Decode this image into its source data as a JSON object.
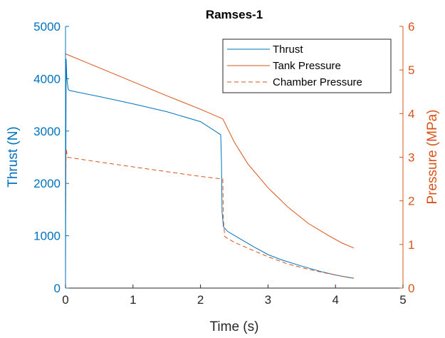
{
  "chart_data": {
    "type": "line",
    "title": "Ramses-1",
    "xlabel": "Time (s)",
    "ylabel_left": "Thrust (N)",
    "ylabel_right": "Pressure (MPa)",
    "xlim": [
      0,
      5
    ],
    "ylim_left": [
      0,
      5000
    ],
    "ylim_right": [
      0,
      6
    ],
    "xticks": [
      "0",
      "1",
      "2",
      "3",
      "4",
      "5"
    ],
    "yticks_left": [
      "0",
      "1000",
      "2000",
      "3000",
      "4000",
      "5000"
    ],
    "yticks_right": [
      "0",
      "1",
      "2",
      "3",
      "4",
      "5",
      "6"
    ],
    "grid": false,
    "legend_position": "top-right",
    "colors": {
      "left_axis": "#0072BD",
      "right_axis": "#D95319",
      "axes_dark": "#262626"
    },
    "series": [
      {
        "name": "Thrust",
        "axis": "left",
        "style": "solid",
        "color": "#0072BD",
        "points": [
          [
            0.0,
            150
          ],
          [
            0.01,
            4380
          ],
          [
            0.02,
            4000
          ],
          [
            0.04,
            3800
          ],
          [
            0.06,
            3775
          ],
          [
            0.5,
            3660
          ],
          [
            1.0,
            3520
          ],
          [
            1.5,
            3370
          ],
          [
            2.0,
            3180
          ],
          [
            2.3,
            2930
          ],
          [
            2.31,
            2440
          ],
          [
            2.32,
            1460
          ],
          [
            2.34,
            1170
          ],
          [
            2.4,
            1085
          ],
          [
            2.6,
            930
          ],
          [
            2.8,
            780
          ],
          [
            3.0,
            640
          ],
          [
            3.2,
            540
          ],
          [
            3.5,
            420
          ],
          [
            3.8,
            310
          ],
          [
            4.0,
            250
          ],
          [
            4.2,
            200
          ],
          [
            4.27,
            190
          ]
        ]
      },
      {
        "name": "Tank Pressure",
        "axis": "right",
        "style": "solid",
        "color": "#D95319",
        "points": [
          [
            0.0,
            5.37
          ],
          [
            0.5,
            5.05
          ],
          [
            1.0,
            4.73
          ],
          [
            1.5,
            4.41
          ],
          [
            2.0,
            4.1
          ],
          [
            2.33,
            3.88
          ],
          [
            2.5,
            3.35
          ],
          [
            2.7,
            2.85
          ],
          [
            3.0,
            2.3
          ],
          [
            3.3,
            1.85
          ],
          [
            3.6,
            1.48
          ],
          [
            3.9,
            1.2
          ],
          [
            4.1,
            1.03
          ],
          [
            4.27,
            0.92
          ]
        ]
      },
      {
        "name": "Chamber Pressure",
        "axis": "right",
        "style": "dashed",
        "color": "#D95319",
        "points": [
          [
            0.0,
            1.6
          ],
          [
            0.01,
            3.2
          ],
          [
            0.03,
            3.0
          ],
          [
            0.5,
            2.89
          ],
          [
            1.0,
            2.78
          ],
          [
            1.5,
            2.67
          ],
          [
            2.0,
            2.56
          ],
          [
            2.33,
            2.5
          ],
          [
            2.34,
            1.55
          ],
          [
            2.36,
            1.18
          ],
          [
            2.5,
            1.05
          ],
          [
            2.8,
            0.85
          ],
          [
            3.0,
            0.72
          ],
          [
            3.3,
            0.55
          ],
          [
            3.6,
            0.43
          ],
          [
            3.9,
            0.33
          ],
          [
            4.1,
            0.27
          ],
          [
            4.27,
            0.23
          ]
        ]
      }
    ]
  }
}
